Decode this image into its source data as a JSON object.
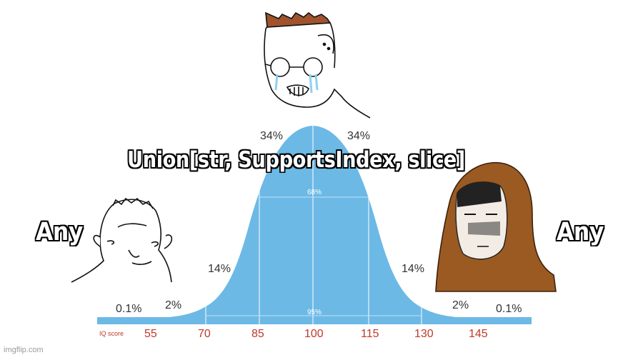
{
  "captions": {
    "top": "Union[str, SupportsIndex, slice]",
    "left": "Any",
    "right": "Any"
  },
  "chart": {
    "percent_labels": {
      "left_34": "34%",
      "right_34": "34%",
      "inner_68": "68%",
      "left_14": "14%",
      "right_14": "14%",
      "left_2": "2%",
      "right_2": "2%",
      "left_01": "0.1%",
      "right_01": "0.1%",
      "inner_95": "95%"
    },
    "axis_label": "IQ score",
    "ticks": [
      "55",
      "70",
      "85",
      "100",
      "115",
      "130",
      "145"
    ]
  },
  "colors": {
    "curve_fill": "#6cb9e6",
    "tick_text": "#c0392b",
    "label_text": "#333333"
  },
  "watermark": "imgflip.com"
}
